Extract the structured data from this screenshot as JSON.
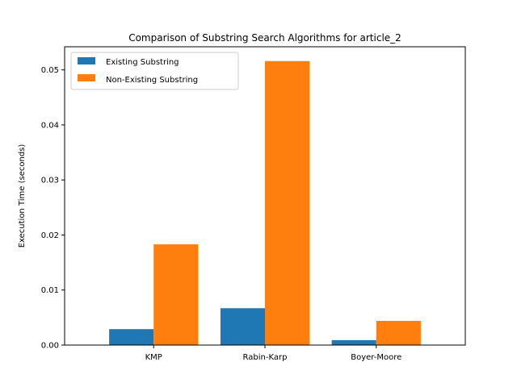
{
  "chart_data": {
    "type": "bar",
    "title": "Comparison of Substring Search Algorithms for article_2",
    "xlabel": "",
    "ylabel": "Execution Time (seconds)",
    "categories": [
      "KMP",
      "Rabin-Karp",
      "Boyer-Moore"
    ],
    "series": [
      {
        "name": "Existing Substring",
        "values": [
          0.0029,
          0.0067,
          0.0009
        ],
        "color": "#1f77b4"
      },
      {
        "name": "Non-Existing Substring",
        "values": [
          0.0183,
          0.0516,
          0.0044
        ],
        "color": "#ff7f0e"
      }
    ],
    "ylim": [
      0,
      0.0542
    ],
    "yticks": [
      0.0,
      0.01,
      0.02,
      0.03,
      0.04,
      0.05
    ],
    "ytick_labels": [
      "0.00",
      "0.01",
      "0.02",
      "0.03",
      "0.04",
      "0.05"
    ],
    "grid": false,
    "legend_position": "top-left"
  }
}
